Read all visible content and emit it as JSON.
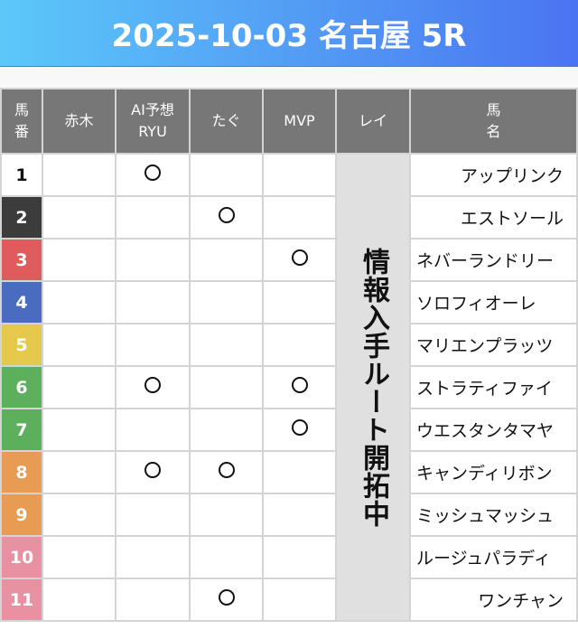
{
  "title": "2025-10-03 名古屋 5R",
  "headers": {
    "num_1": "馬",
    "num_2": "番",
    "akagi": "赤木",
    "ai_1": "AI予想",
    "ai_2": "RYU",
    "tagu": "たぐ",
    "mvp": "MVP",
    "rei": "レイ",
    "name_1": "馬",
    "name_2": "名"
  },
  "rei_note": "情報入手ルート開拓中",
  "mark_symbol": "circle",
  "rows": [
    {
      "num": "1",
      "color": "#ffffff",
      "text": "#111111",
      "name": "アップリンク",
      "akagi": false,
      "ai": true,
      "tagu": false,
      "mvp": false
    },
    {
      "num": "2",
      "color": "#3c3c3c",
      "text": "#ffffff",
      "name": "エストソール",
      "akagi": false,
      "ai": false,
      "tagu": true,
      "mvp": false
    },
    {
      "num": "3",
      "color": "#e05b5b",
      "text": "#ffffff",
      "name": "ネバーランドリー",
      "akagi": false,
      "ai": false,
      "tagu": false,
      "mvp": true
    },
    {
      "num": "4",
      "color": "#4a6cc0",
      "text": "#ffffff",
      "name": "ソロフィオーレ",
      "akagi": false,
      "ai": false,
      "tagu": false,
      "mvp": false
    },
    {
      "num": "5",
      "color": "#e6c84b",
      "text": "#ffffff",
      "name": "マリエンプラッツ",
      "akagi": false,
      "ai": false,
      "tagu": false,
      "mvp": false
    },
    {
      "num": "6",
      "color": "#5cb05c",
      "text": "#ffffff",
      "name": "ストラティファイ",
      "akagi": false,
      "ai": true,
      "tagu": false,
      "mvp": true
    },
    {
      "num": "7",
      "color": "#5cb05c",
      "text": "#ffffff",
      "name": "ウエスタンタマヤ",
      "akagi": false,
      "ai": false,
      "tagu": false,
      "mvp": true
    },
    {
      "num": "8",
      "color": "#e89b52",
      "text": "#ffffff",
      "name": "キャンディリボン",
      "akagi": false,
      "ai": true,
      "tagu": true,
      "mvp": false
    },
    {
      "num": "9",
      "color": "#e89b52",
      "text": "#ffffff",
      "name": "ミッシュマッシュ",
      "akagi": false,
      "ai": false,
      "tagu": false,
      "mvp": false
    },
    {
      "num": "10",
      "color": "#e891a2",
      "text": "#ffffff",
      "name": "ルージュパラディ",
      "akagi": false,
      "ai": false,
      "tagu": false,
      "mvp": false
    },
    {
      "num": "11",
      "color": "#e891a2",
      "text": "#ffffff",
      "name": "ワンチャン",
      "akagi": false,
      "ai": false,
      "tagu": true,
      "mvp": false
    }
  ]
}
